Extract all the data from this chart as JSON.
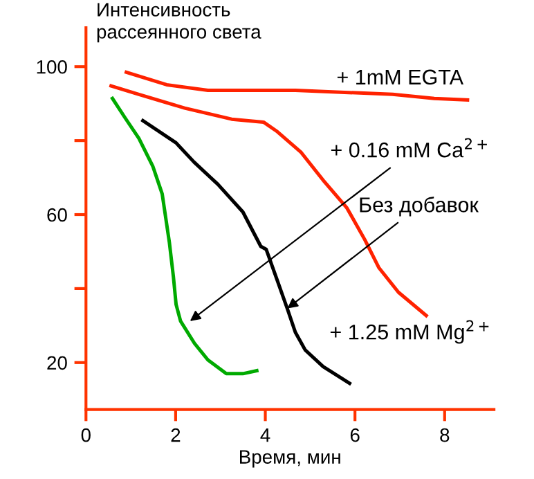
{
  "chart_data": {
    "type": "line",
    "ylabel": "Интенсивность\nрассеянного света",
    "xlabel": "Время, мин",
    "xlim": [
      0,
      9.1
    ],
    "xticks": [
      0,
      2,
      4,
      6,
      8
    ],
    "ylim": [
      7.3,
      110.5
    ],
    "yticks": [
      20,
      {
        "value": 40,
        "label": null
      },
      60,
      {
        "value": 80,
        "label": null
      },
      100
    ],
    "grid": false,
    "legend": false,
    "marker": "none",
    "line_style": "solid",
    "series": [
      {
        "color": "#ff2200",
        "x": [
          0.9,
          1.8,
          2.72,
          4.67,
          6.84,
          7.77,
          8.51
        ],
        "values": [
          98.5,
          95.1,
          93.6,
          93.6,
          92.5,
          91.4,
          91.0
        ]
      },
      {
        "color": "#ff2200",
        "x": [
          0.56,
          1.18,
          2.2,
          3.25,
          3.96,
          4.27,
          4.8,
          5.29,
          5.82,
          6.22,
          6.53,
          6.97,
          7.59
        ],
        "values": [
          94.8,
          92.5,
          88.8,
          85.8,
          85.0,
          82.4,
          76.8,
          69.3,
          61.8,
          53.2,
          45.7,
          39.0,
          32.7
        ]
      },
      {
        "color": "#000000",
        "x": [
          1.27,
          2.01,
          2.41,
          2.94,
          3.5,
          3.9,
          4.02,
          4.27,
          4.49,
          4.67,
          4.89,
          5.29,
          5.88
        ],
        "values": [
          85.4,
          79.4,
          74.2,
          68.2,
          60.7,
          51.4,
          50.6,
          42.1,
          34.6,
          28.2,
          23.4,
          18.9,
          14.4
        ]
      },
      {
        "color": "#00aa00",
        "x": [
          0.59,
          0.87,
          1.18,
          1.49,
          1.7,
          1.86,
          1.95,
          2.01,
          2.11,
          2.42,
          2.72,
          3.13,
          3.5,
          3.81
        ],
        "values": [
          91.4,
          86.2,
          80.6,
          73.1,
          65.6,
          52.5,
          43.2,
          35.7,
          31.2,
          25.2,
          20.7,
          17.0,
          17.0,
          17.8
        ]
      }
    ],
    "annotations": [
      "+ 1mM EGTA",
      {
        "text": "+ 0.16 mM Ca$^{2+}$",
        "x": 2.32,
        "y": 31.2
      },
      {
        "text": "Без добавок",
        "x": 4.49,
        "y": 34.6
      },
      "+ 1.25 mM Mg$^{2+}$"
    ]
  }
}
